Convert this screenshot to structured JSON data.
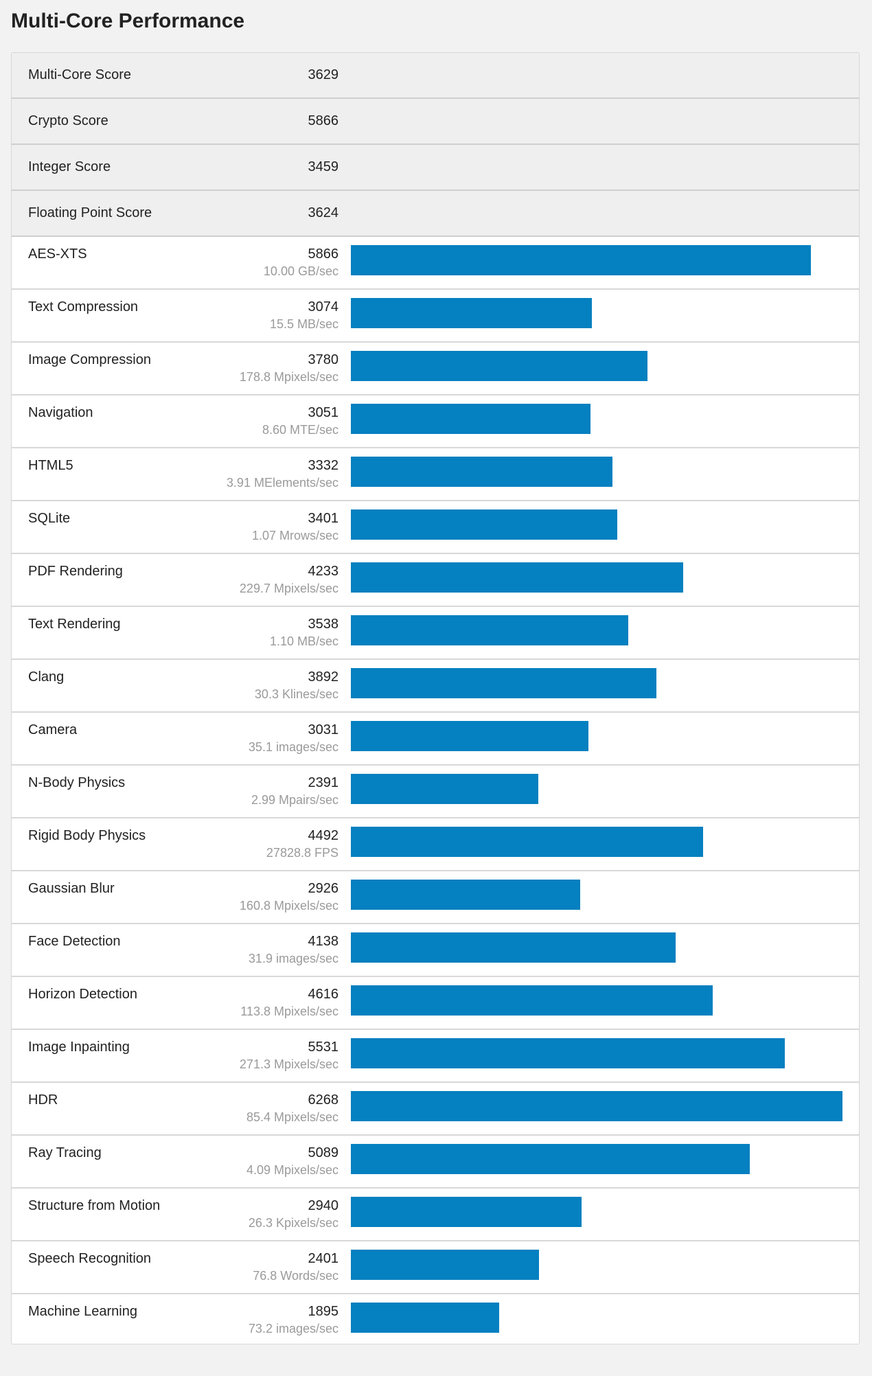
{
  "title": "Multi-Core Performance",
  "colors": {
    "bar": "#0580c0",
    "background": "#f2f2f2",
    "summary_row": "#efefef"
  },
  "summary": [
    {
      "label": "Multi-Core Score",
      "value": "3629"
    },
    {
      "label": "Crypto Score",
      "value": "5866"
    },
    {
      "label": "Integer Score",
      "value": "3459"
    },
    {
      "label": "Floating Point Score",
      "value": "3624"
    }
  ],
  "chart_data": {
    "type": "bar",
    "orientation": "horizontal",
    "max_value": 6268,
    "categories": [
      "AES-XTS",
      "Text Compression",
      "Image Compression",
      "Navigation",
      "HTML5",
      "SQLite",
      "PDF Rendering",
      "Text Rendering",
      "Clang",
      "Camera",
      "N-Body Physics",
      "Rigid Body Physics",
      "Gaussian Blur",
      "Face Detection",
      "Horizon Detection",
      "Image Inpainting",
      "HDR",
      "Ray Tracing",
      "Structure from Motion",
      "Speech Recognition",
      "Machine Learning"
    ],
    "values": [
      5866,
      3074,
      3780,
      3051,
      3332,
      3401,
      4233,
      3538,
      3892,
      3031,
      2391,
      4492,
      2926,
      4138,
      4616,
      5531,
      6268,
      5089,
      2940,
      2401,
      1895
    ],
    "subtitles": [
      "10.00 GB/sec",
      "15.5 MB/sec",
      "178.8 Mpixels/sec",
      "8.60 MTE/sec",
      "3.91 MElements/sec",
      "1.07 Mrows/sec",
      "229.7 Mpixels/sec",
      "1.10 MB/sec",
      "30.3 Klines/sec",
      "35.1 images/sec",
      "2.99 Mpairs/sec",
      "27828.8 FPS",
      "160.8 Mpixels/sec",
      "31.9 images/sec",
      "113.8 Mpixels/sec",
      "271.3 Mpixels/sec",
      "85.4 Mpixels/sec",
      "4.09 Mpixels/sec",
      "26.3 Kpixels/sec",
      "76.8 Words/sec",
      "73.2 images/sec"
    ]
  }
}
